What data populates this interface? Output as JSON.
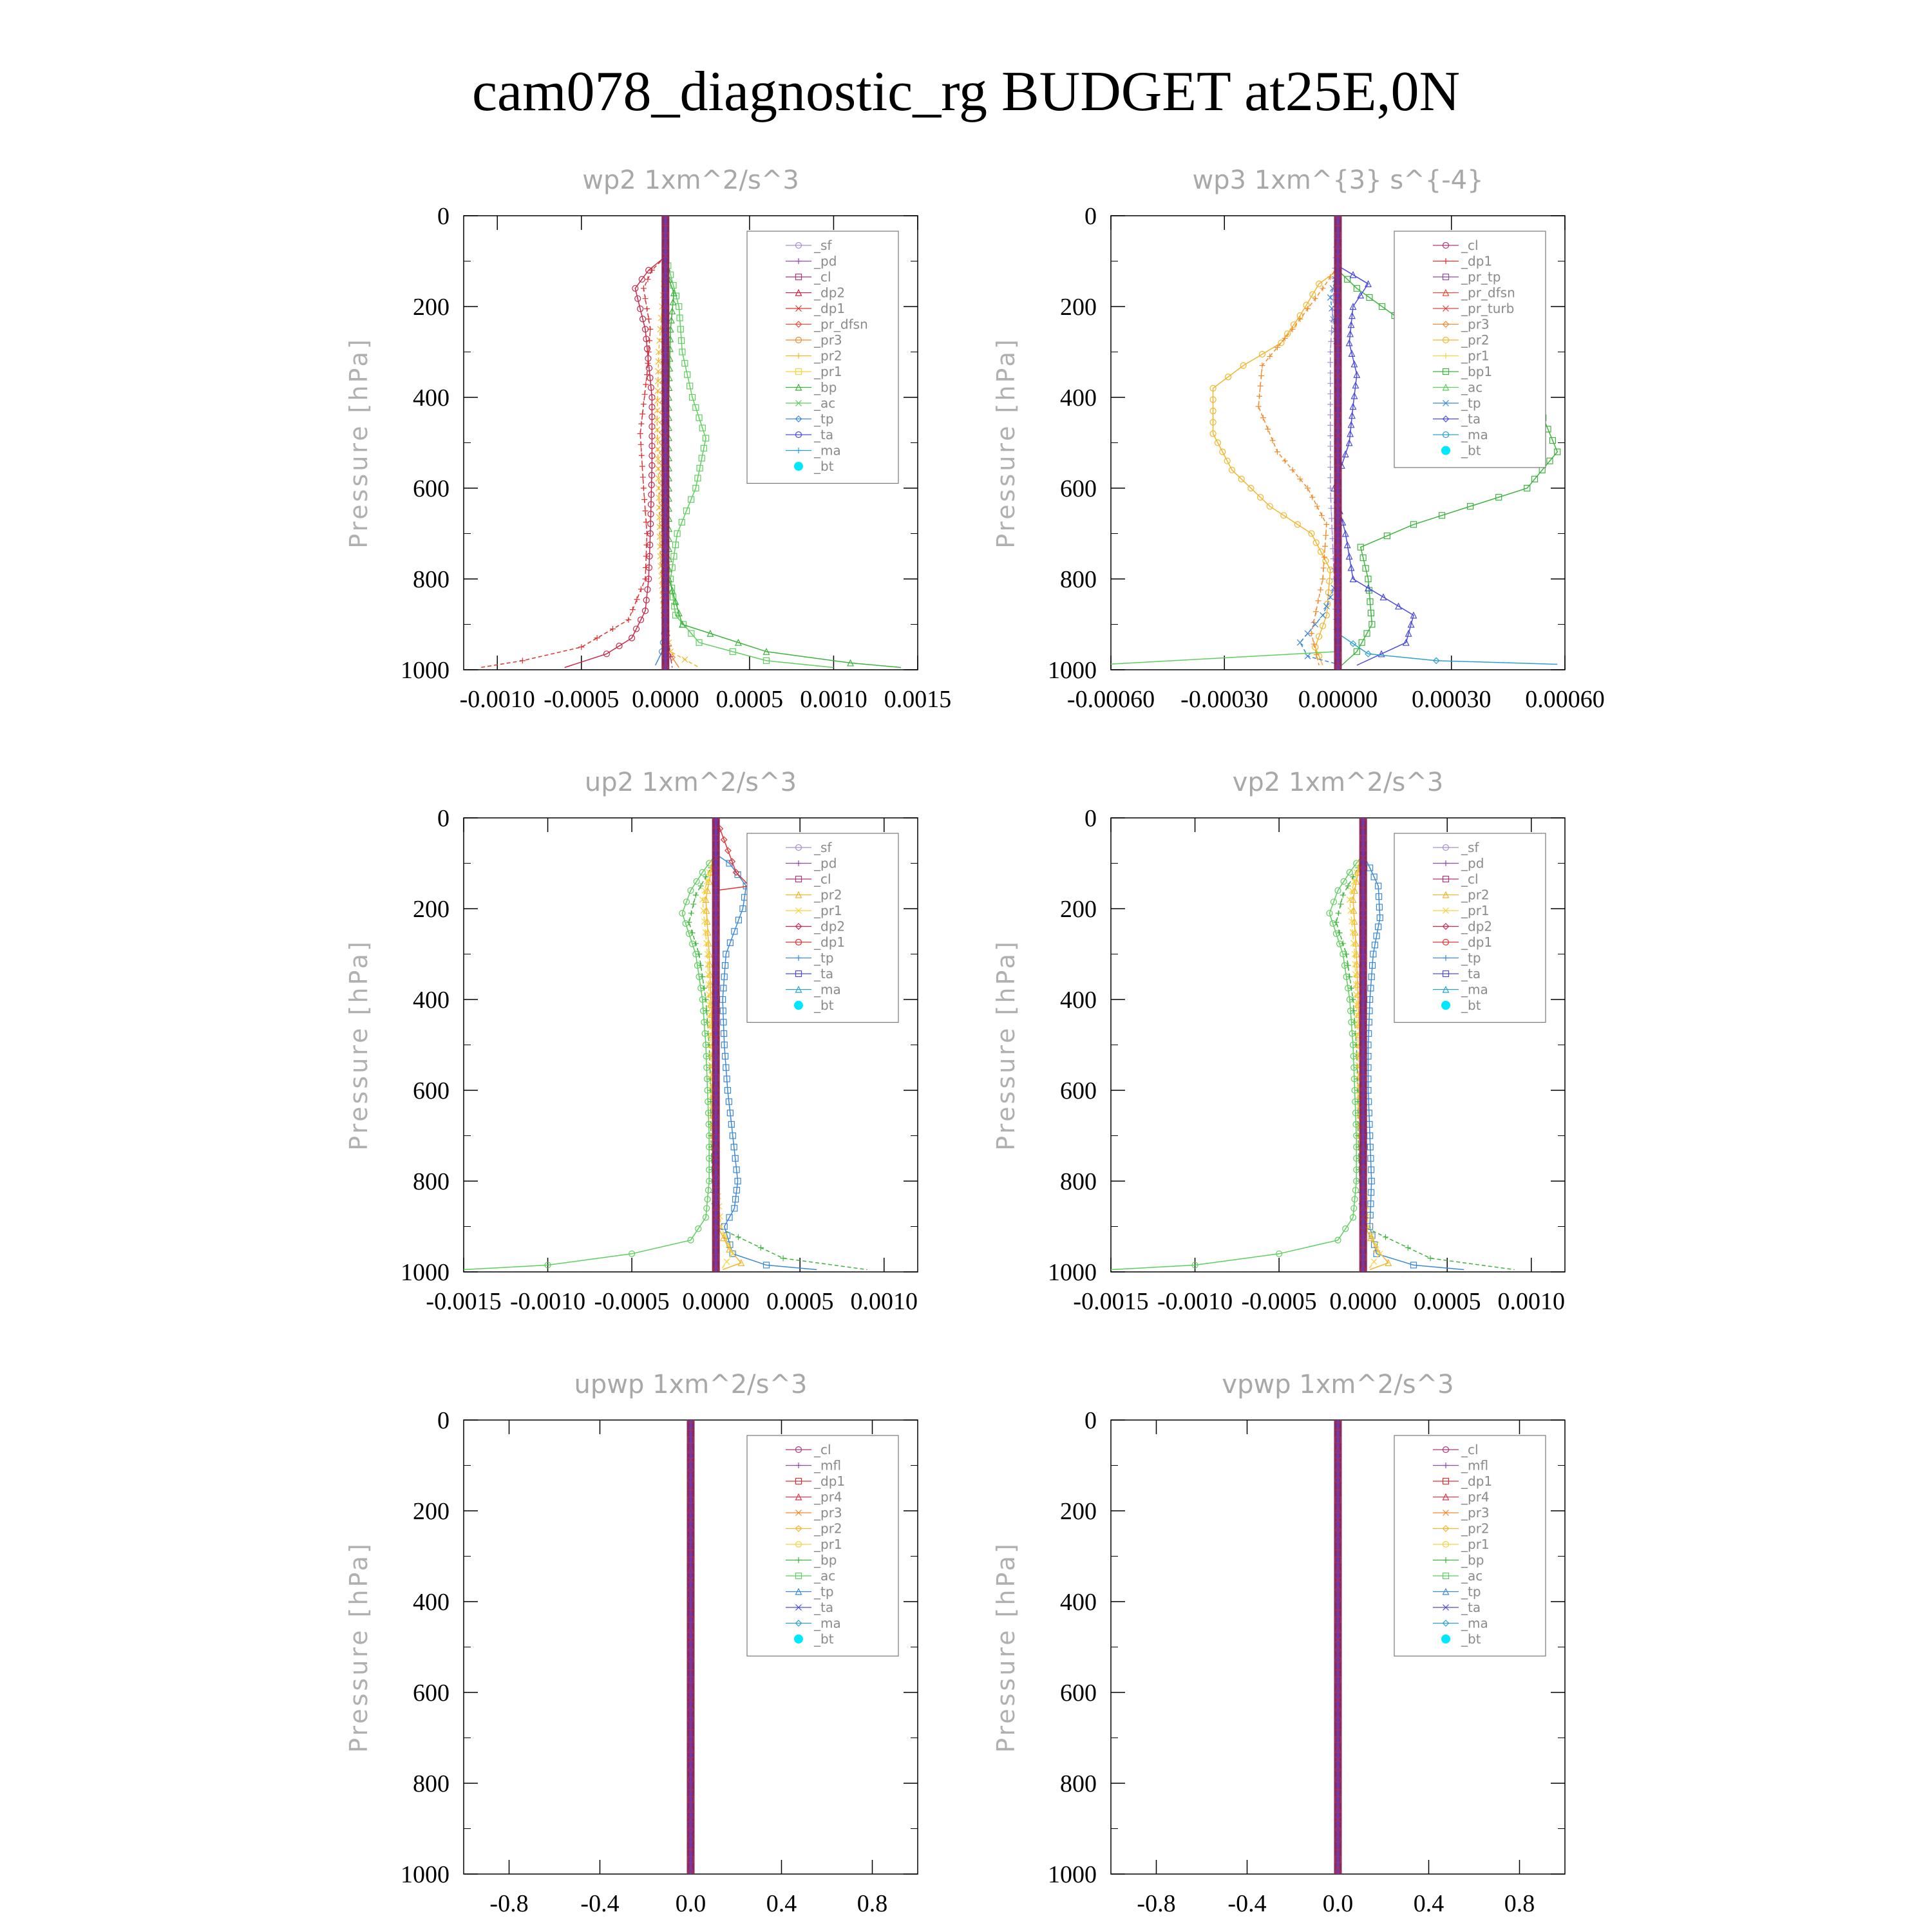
{
  "title": "cam078_diagnostic_rg  BUDGET at25E,0N",
  "colors": {
    "sf": "#a58fd8",
    "pd": "#8e4aa8",
    "cl": "#b2337a",
    "dp2": "#c8264a",
    "dp1": "#e03030",
    "pr_dfsn": "#f04a3a",
    "pr3": "#f08a2a",
    "pr2": "#f3b52a",
    "pr1": "#f6d23a",
    "bp": "#3cb43c",
    "ac": "#5ccf5c",
    "tp": "#3a88d8",
    "ta": "#4a4ae0",
    "ma": "#2aa0d0",
    "bt": "#00e8ff",
    "mfl": "#8e4aa8",
    "pr4": "#d83a4a",
    "pr_tp": "#8e4aa8",
    "pr_turb": "#e04040"
  },
  "chart_data": [
    {
      "type": "line",
      "title": "wp2   1xm^2/s^3",
      "ylabel": "Pressure [hPa]",
      "ylim": [
        1000,
        0
      ],
      "xlim": [
        -0.0012,
        0.0015
      ],
      "xticks": [
        "-0.0010",
        "-0.0005",
        "0.0000",
        "0.0005",
        "0.0010",
        "0.0015"
      ],
      "xtick_values": [
        -0.001,
        -0.0005,
        0,
        0.0005,
        0.001,
        0.0015
      ],
      "yticks": [
        "0",
        "200",
        "400",
        "600",
        "800",
        "1000"
      ],
      "legend": [
        "_sf",
        "_pd",
        "_cl",
        "_dp2",
        "_dp1",
        "_pr_dfsn",
        "_pr3",
        "_pr2",
        "_pr1",
        "_bp",
        "_ac",
        "_tp",
        "_ta",
        "_ma",
        "_bt"
      ],
      "series": [
        {
          "name": "_dp2",
          "color_key": "dp2",
          "x": [
            0,
            -0.0001,
            -0.00018,
            -0.00012,
            -8e-05,
            -8e-05,
            -9e-05,
            -0.0001,
            -0.00012,
            -0.0002,
            -0.00035,
            -0.0006
          ],
          "y": [
            90,
            120,
            160,
            250,
            400,
            550,
            700,
            800,
            870,
            930,
            965,
            995
          ]
        },
        {
          "name": "_dp1",
          "color_key": "dp1",
          "x": [
            0,
            -8e-05,
            -0.00013,
            -9e-05,
            -0.00011,
            -0.00015,
            -0.00013,
            -0.00011,
            -0.00012,
            -0.00022,
            -0.0005,
            -0.00085,
            -0.0011
          ],
          "y": [
            90,
            120,
            160,
            250,
            350,
            480,
            600,
            700,
            800,
            890,
            950,
            980,
            995
          ]
        },
        {
          "name": "_ac",
          "color_key": "ac",
          "x": [
            0,
            3e-05,
            8e-05,
            0.0001,
            0.00016,
            0.00024,
            0.00018,
            7e-05,
            3e-05,
            6e-05,
            0.0002,
            0.0006,
            0.001
          ],
          "y": [
            90,
            130,
            200,
            300,
            400,
            490,
            600,
            700,
            800,
            880,
            940,
            980,
            995
          ]
        },
        {
          "name": "_bp",
          "color_key": "bp",
          "x": [
            0,
            2e-05,
            5e-05,
            3e-05,
            2e-05,
            2e-05,
            0.0001,
            0.0006,
            0.0011,
            0.0014
          ],
          "y": [
            90,
            140,
            170,
            250,
            400,
            800,
            900,
            960,
            985,
            995
          ]
        },
        {
          "name": "_pr2",
          "color_key": "pr2",
          "x": [
            0,
            -2e-05,
            -4e-05,
            -5e-05,
            -4e-05,
            -3e-05,
            -1e-05,
            3e-05,
            0.0002
          ],
          "y": [
            100,
            200,
            300,
            450,
            600,
            750,
            880,
            960,
            995
          ]
        },
        {
          "name": "_pr3",
          "color_key": "pr3",
          "x": [
            0,
            -1e-05,
            -2e-05,
            -2e-05,
            -1e-05,
            0,
            8e-05
          ],
          "y": [
            100,
            300,
            500,
            700,
            850,
            950,
            995
          ]
        },
        {
          "name": "_tp",
          "color_key": "tp",
          "x": [
            0,
            0,
            -2e-05,
            -6e-05
          ],
          "y": [
            100,
            900,
            960,
            990
          ]
        },
        {
          "name": "_cl",
          "color_key": "cl",
          "x": [
            0,
            0,
            4e-05
          ],
          "y": [
            0,
            900,
            995
          ]
        },
        {
          "name": "_bt",
          "color_key": "bt",
          "x": [
            0,
            0
          ],
          "y": [
            0,
            1000
          ]
        }
      ]
    },
    {
      "type": "line",
      "title": "wp3   1xm^{3} s^{-4}",
      "ylabel": "Pressure [hPa]",
      "ylim": [
        1000,
        0
      ],
      "xlim": [
        -0.0006,
        0.0006
      ],
      "xticks": [
        "-0.00060",
        "-0.00030",
        "0.00000",
        "0.00030",
        "0.00060"
      ],
      "xtick_values": [
        -0.0006,
        -0.0003,
        0,
        0.0003,
        0.0006
      ],
      "yticks": [
        "0",
        "200",
        "400",
        "600",
        "800",
        "1000"
      ],
      "legend": [
        "_cl",
        "_dp1",
        "_pr_tp",
        "_pr_dfsn",
        "_pr_turb",
        "_pr3",
        "_pr2",
        "_pr1",
        "_bp1",
        "_ac",
        "_tp",
        "_ta",
        "_ma",
        "_bt"
      ],
      "series": [
        {
          "name": "_pr2",
          "color_key": "pr2",
          "x": [
            0,
            -5e-05,
            -0.0001,
            -0.00015,
            -0.00025,
            -0.00033,
            -0.00033,
            -0.00028,
            -0.00018,
            -7e-05,
            -2e-05,
            -3e-05,
            -6e-05,
            -4e-05
          ],
          "y": [
            120,
            150,
            220,
            280,
            330,
            380,
            480,
            560,
            640,
            700,
            780,
            880,
            950,
            990
          ]
        },
        {
          "name": "_pr3",
          "color_key": "pr3",
          "x": [
            0,
            -4e-05,
            -0.00012,
            -0.0002,
            -0.00021,
            -0.00016,
            -8e-05,
            -3e-05,
            -4e-05,
            -7e-05,
            -5e-05
          ],
          "y": [
            110,
            160,
            250,
            330,
            420,
            520,
            600,
            680,
            800,
            920,
            990
          ]
        },
        {
          "name": "_bp1",
          "color_key": "bp",
          "x": [
            0,
            5e-05,
            0.00015,
            0.0003,
            0.00053,
            0.00058,
            0.0005,
            0.0002,
            6e-05,
            8e-05,
            9e-05,
            5e-05,
            1e-05
          ],
          "y": [
            120,
            160,
            220,
            310,
            420,
            520,
            600,
            680,
            730,
            800,
            900,
            960,
            990
          ]
        },
        {
          "name": "_ta",
          "color_key": "ta",
          "x": [
            0,
            8e-05,
            4e-05,
            3e-05,
            5e-05,
            4e-05,
            3e-05,
            -1e-05,
            2e-05,
            4e-05,
            0.0002,
            0.00018,
            5e-05
          ],
          "y": [
            110,
            150,
            200,
            280,
            350,
            420,
            500,
            600,
            700,
            800,
            880,
            940,
            990
          ]
        },
        {
          "name": "_tp",
          "color_key": "tp",
          "x": [
            0,
            -2e-05,
            0,
            0,
            -4e-05,
            -0.0001,
            -8e-05,
            1e-05
          ],
          "y": [
            120,
            180,
            300,
            800,
            880,
            940,
            970,
            990
          ]
        },
        {
          "name": "_ma",
          "color_key": "ma",
          "x": [
            0,
            0,
            8e-05,
            0.00026,
            0.00058
          ],
          "y": [
            0,
            920,
            965,
            980,
            988
          ]
        },
        {
          "name": "_ac",
          "color_key": "ac",
          "x": [
            0,
            0,
            -0.00061
          ],
          "y": [
            0,
            960,
            988
          ]
        },
        {
          "name": "_cl",
          "color_key": "sf",
          "x": [
            0,
            -2e-05,
            -2e-05,
            0
          ],
          "y": [
            0,
            300,
            600,
            1000
          ]
        },
        {
          "name": "_bt",
          "color_key": "bt",
          "x": [
            0,
            0
          ],
          "y": [
            0,
            1000
          ]
        }
      ]
    },
    {
      "type": "line",
      "title": "up2   1xm^2/s^3",
      "ylabel": "Pressure [hPa]",
      "ylim": [
        1000,
        0
      ],
      "xlim": [
        -0.0015,
        0.0012
      ],
      "xticks": [
        "-0.0015",
        "-0.0010",
        "-0.0005",
        "0.0000",
        "0.0005",
        "0.0010"
      ],
      "xtick_values": [
        -0.0015,
        -0.001,
        -0.0005,
        0,
        0.0005,
        0.001
      ],
      "yticks": [
        "0",
        "200",
        "400",
        "600",
        "800",
        "1000"
      ],
      "legend": [
        "_sf",
        "_pd",
        "_cl",
        "_pr2",
        "_pr1",
        "_dp2",
        "_dp1",
        "_tp",
        "_ta",
        "_ma",
        "_bt"
      ],
      "series": [
        {
          "name": "_dp1",
          "color_key": "ac",
          "x": [
            0,
            -8e-05,
            -0.00015,
            -0.0002,
            -0.00012,
            -8e-05,
            -6e-05,
            -5e-05,
            -4e-05,
            -4e-05,
            -6e-05,
            -0.00015,
            -0.0005,
            -0.001,
            -0.0015
          ],
          "y": [
            80,
            120,
            160,
            210,
            300,
            400,
            500,
            600,
            700,
            800,
            880,
            930,
            960,
            985,
            995
          ]
        },
        {
          "name": "_dp2",
          "color_key": "bp",
          "x": [
            0,
            -6e-05,
            -0.00012,
            -0.00016,
            -0.0001,
            -6e-05,
            -4e-05,
            -3e-05,
            -3e-05,
            -2e-05,
            0,
            0.0004,
            0.0009
          ],
          "y": [
            90,
            130,
            170,
            230,
            300,
            400,
            500,
            600,
            700,
            800,
            900,
            970,
            995
          ]
        },
        {
          "name": "_tp",
          "color_key": "tp",
          "x": [
            0,
            8e-05,
            0.00018,
            0.00016,
            6e-05,
            4e-05,
            5e-05,
            7e-05,
            0.0001,
            0.00013,
            0.00011,
            5e-05,
            0.0001,
            0.0003,
            0.0006
          ],
          "y": [
            80,
            100,
            150,
            200,
            300,
            400,
            500,
            600,
            700,
            800,
            860,
            900,
            960,
            985,
            995
          ]
        },
        {
          "name": "_pr2",
          "color_key": "pr2",
          "x": [
            0,
            -3e-05,
            -6e-05,
            -4e-05,
            -2e-05,
            -1e-05,
            1e-05,
            8e-05,
            0.00015,
            4e-05
          ],
          "y": [
            80,
            120,
            180,
            300,
            500,
            700,
            900,
            950,
            980,
            995
          ]
        },
        {
          "name": "_pr1",
          "color_key": "pr1",
          "x": [
            0,
            -4e-05,
            -8e-05,
            -5e-05,
            -3e-05,
            -2e-05,
            3e-05,
            0.0001,
            3e-05
          ],
          "y": [
            80,
            120,
            180,
            300,
            500,
            700,
            900,
            960,
            995
          ]
        },
        {
          "name": "_cl",
          "color_key": "dp1",
          "x": [
            0,
            0.00012,
            0.0002,
            0
          ],
          "y": [
            0,
            120,
            150,
            160
          ]
        },
        {
          "name": "_bt",
          "color_key": "bt",
          "x": [
            0,
            0
          ],
          "y": [
            0,
            1000
          ]
        }
      ]
    },
    {
      "type": "line",
      "title": "vp2   1xm^2/s^3",
      "ylabel": "Pressure [hPa]",
      "ylim": [
        1000,
        0
      ],
      "xlim": [
        -0.0015,
        0.0012
      ],
      "xticks": [
        "-0.0015",
        "-0.0010",
        "-0.0005",
        "0.0000",
        "0.0005",
        "0.0010"
      ],
      "xtick_values": [
        -0.0015,
        -0.001,
        -0.0005,
        0,
        0.0005,
        0.001
      ],
      "yticks": [
        "0",
        "200",
        "400",
        "600",
        "800",
        "1000"
      ],
      "legend": [
        "_sf",
        "_pd",
        "_cl",
        "_pr2",
        "_pr1",
        "_dp2",
        "_dp1",
        "_tp",
        "_ta",
        "_ma",
        "_bt"
      ],
      "series": [
        {
          "name": "_dp1",
          "color_key": "ac",
          "x": [
            0,
            -8e-05,
            -0.00015,
            -0.0002,
            -0.00012,
            -8e-05,
            -6e-05,
            -5e-05,
            -4e-05,
            -4e-05,
            -6e-05,
            -0.00015,
            -0.0005,
            -0.001,
            -0.0015
          ],
          "y": [
            80,
            120,
            160,
            210,
            300,
            400,
            500,
            600,
            700,
            800,
            880,
            930,
            960,
            985,
            995
          ]
        },
        {
          "name": "_dp2",
          "color_key": "bp",
          "x": [
            0,
            -6e-05,
            -0.00012,
            -0.00016,
            -0.0001,
            -6e-05,
            -4e-05,
            -3e-05,
            -3e-05,
            -2e-05,
            0,
            0.0004,
            0.0009
          ],
          "y": [
            90,
            130,
            170,
            230,
            300,
            400,
            500,
            600,
            700,
            800,
            900,
            970,
            995
          ]
        },
        {
          "name": "_tp",
          "color_key": "tp",
          "x": [
            0,
            4e-05,
            9e-05,
            0.0001,
            6e-05,
            4e-05,
            3e-05,
            3e-05,
            4e-05,
            5e-05,
            4e-05,
            8e-05,
            0.0003,
            0.0006
          ],
          "y": [
            80,
            110,
            150,
            220,
            300,
            400,
            500,
            600,
            700,
            800,
            900,
            960,
            985,
            995
          ]
        },
        {
          "name": "_pr2",
          "color_key": "pr2",
          "x": [
            0,
            -3e-05,
            -6e-05,
            -4e-05,
            -2e-05,
            -1e-05,
            1e-05,
            8e-05,
            0.00015,
            4e-05
          ],
          "y": [
            80,
            120,
            180,
            300,
            500,
            700,
            900,
            950,
            980,
            995
          ]
        },
        {
          "name": "_pr1",
          "color_key": "pr1",
          "x": [
            0,
            -4e-05,
            -8e-05,
            -5e-05,
            -3e-05,
            -2e-05,
            3e-05,
            0.0001,
            3e-05
          ],
          "y": [
            80,
            120,
            180,
            300,
            500,
            700,
            900,
            960,
            995
          ]
        },
        {
          "name": "_bt",
          "color_key": "bt",
          "x": [
            0,
            0
          ],
          "y": [
            0,
            1000
          ]
        }
      ]
    },
    {
      "type": "line",
      "title": "upwp   1xm^2/s^3",
      "ylabel": "Pressure [hPa]",
      "ylim": [
        1000,
        0
      ],
      "xlim": [
        -1,
        1
      ],
      "xticks": [
        "-0.8",
        "-0.4",
        "0.0",
        "0.4",
        "0.8"
      ],
      "xtick_values": [
        -0.8,
        -0.4,
        0,
        0.4,
        0.8
      ],
      "yticks": [
        "0",
        "200",
        "400",
        "600",
        "800",
        "1000"
      ],
      "legend": [
        "_cl",
        "_mfl",
        "_dp1",
        "_pr4",
        "_pr3",
        "_pr2",
        "_pr1",
        "_bp",
        "_ac",
        "_tp",
        "_ta",
        "_ma",
        "_bt"
      ],
      "series": [
        {
          "name": "_bt",
          "color_key": "bt",
          "x": [
            0,
            0
          ],
          "y": [
            0,
            1000
          ]
        }
      ]
    },
    {
      "type": "line",
      "title": "vpwp   1xm^2/s^3",
      "ylabel": "Pressure [hPa]",
      "ylim": [
        1000,
        0
      ],
      "xlim": [
        -1,
        1
      ],
      "xticks": [
        "-0.8",
        "-0.4",
        "0.0",
        "0.4",
        "0.8"
      ],
      "xtick_values": [
        -0.8,
        -0.4,
        0,
        0.4,
        0.8
      ],
      "yticks": [
        "0",
        "200",
        "400",
        "600",
        "800",
        "1000"
      ],
      "legend": [
        "_cl",
        "_mfl",
        "_dp1",
        "_pr4",
        "_pr3",
        "_pr2",
        "_pr1",
        "_bp",
        "_ac",
        "_tp",
        "_ta",
        "_ma",
        "_bt"
      ],
      "series": [
        {
          "name": "_bt",
          "color_key": "bt",
          "x": [
            0,
            0
          ],
          "y": [
            0,
            1000
          ]
        }
      ]
    }
  ]
}
